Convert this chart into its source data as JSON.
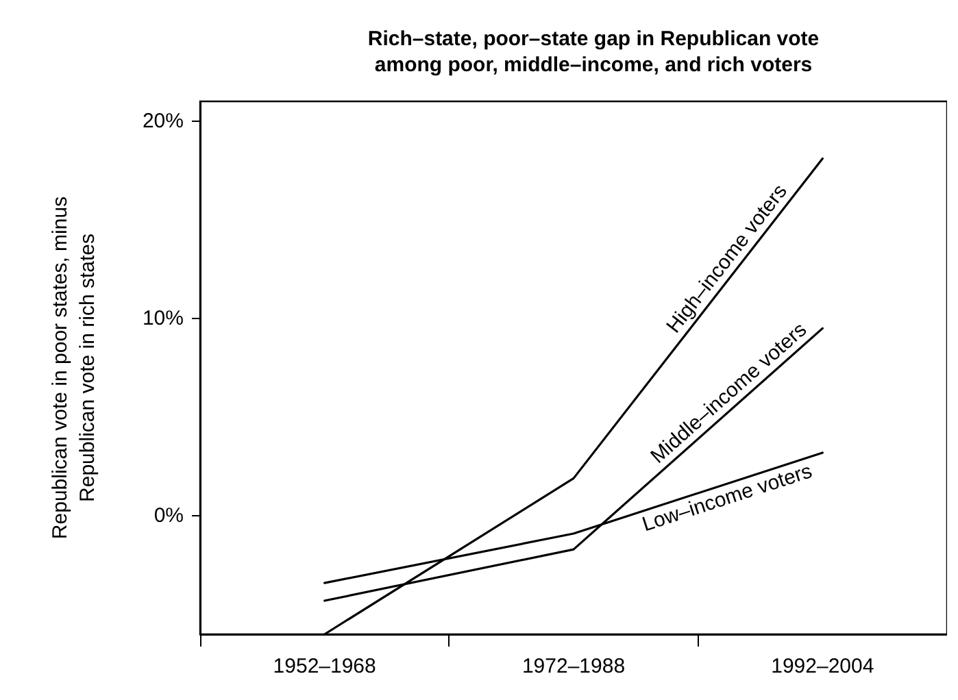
{
  "chart_data": {
    "type": "line",
    "title": "Rich–state, poor–state gap in Republican vote\namong poor, middle–income, and rich voters",
    "ylabel": "Republican vote in poor states, minus\nRepublican vote in rich states",
    "categories": [
      "1952–1968",
      "1972–1988",
      "1992–2004"
    ],
    "series": [
      {
        "name": "High–income voters",
        "color": "#000000",
        "values": [
          -6.0,
          1.9,
          18.1
        ]
      },
      {
        "name": "Middle–income voters",
        "color": "#000000",
        "values": [
          -4.3,
          -1.7,
          9.5
        ]
      },
      {
        "name": "Low–income voters",
        "color": "#000000",
        "values": [
          -3.4,
          -0.9,
          3.2
        ]
      }
    ],
    "ylim": [
      -6,
      21
    ],
    "yticks": [
      {
        "value": 0,
        "label": "0%"
      },
      {
        "value": 10,
        "label": "10%"
      },
      {
        "value": 20,
        "label": "20%"
      }
    ],
    "grid": false,
    "legend": false,
    "marker": "none",
    "line_style": "solid"
  }
}
